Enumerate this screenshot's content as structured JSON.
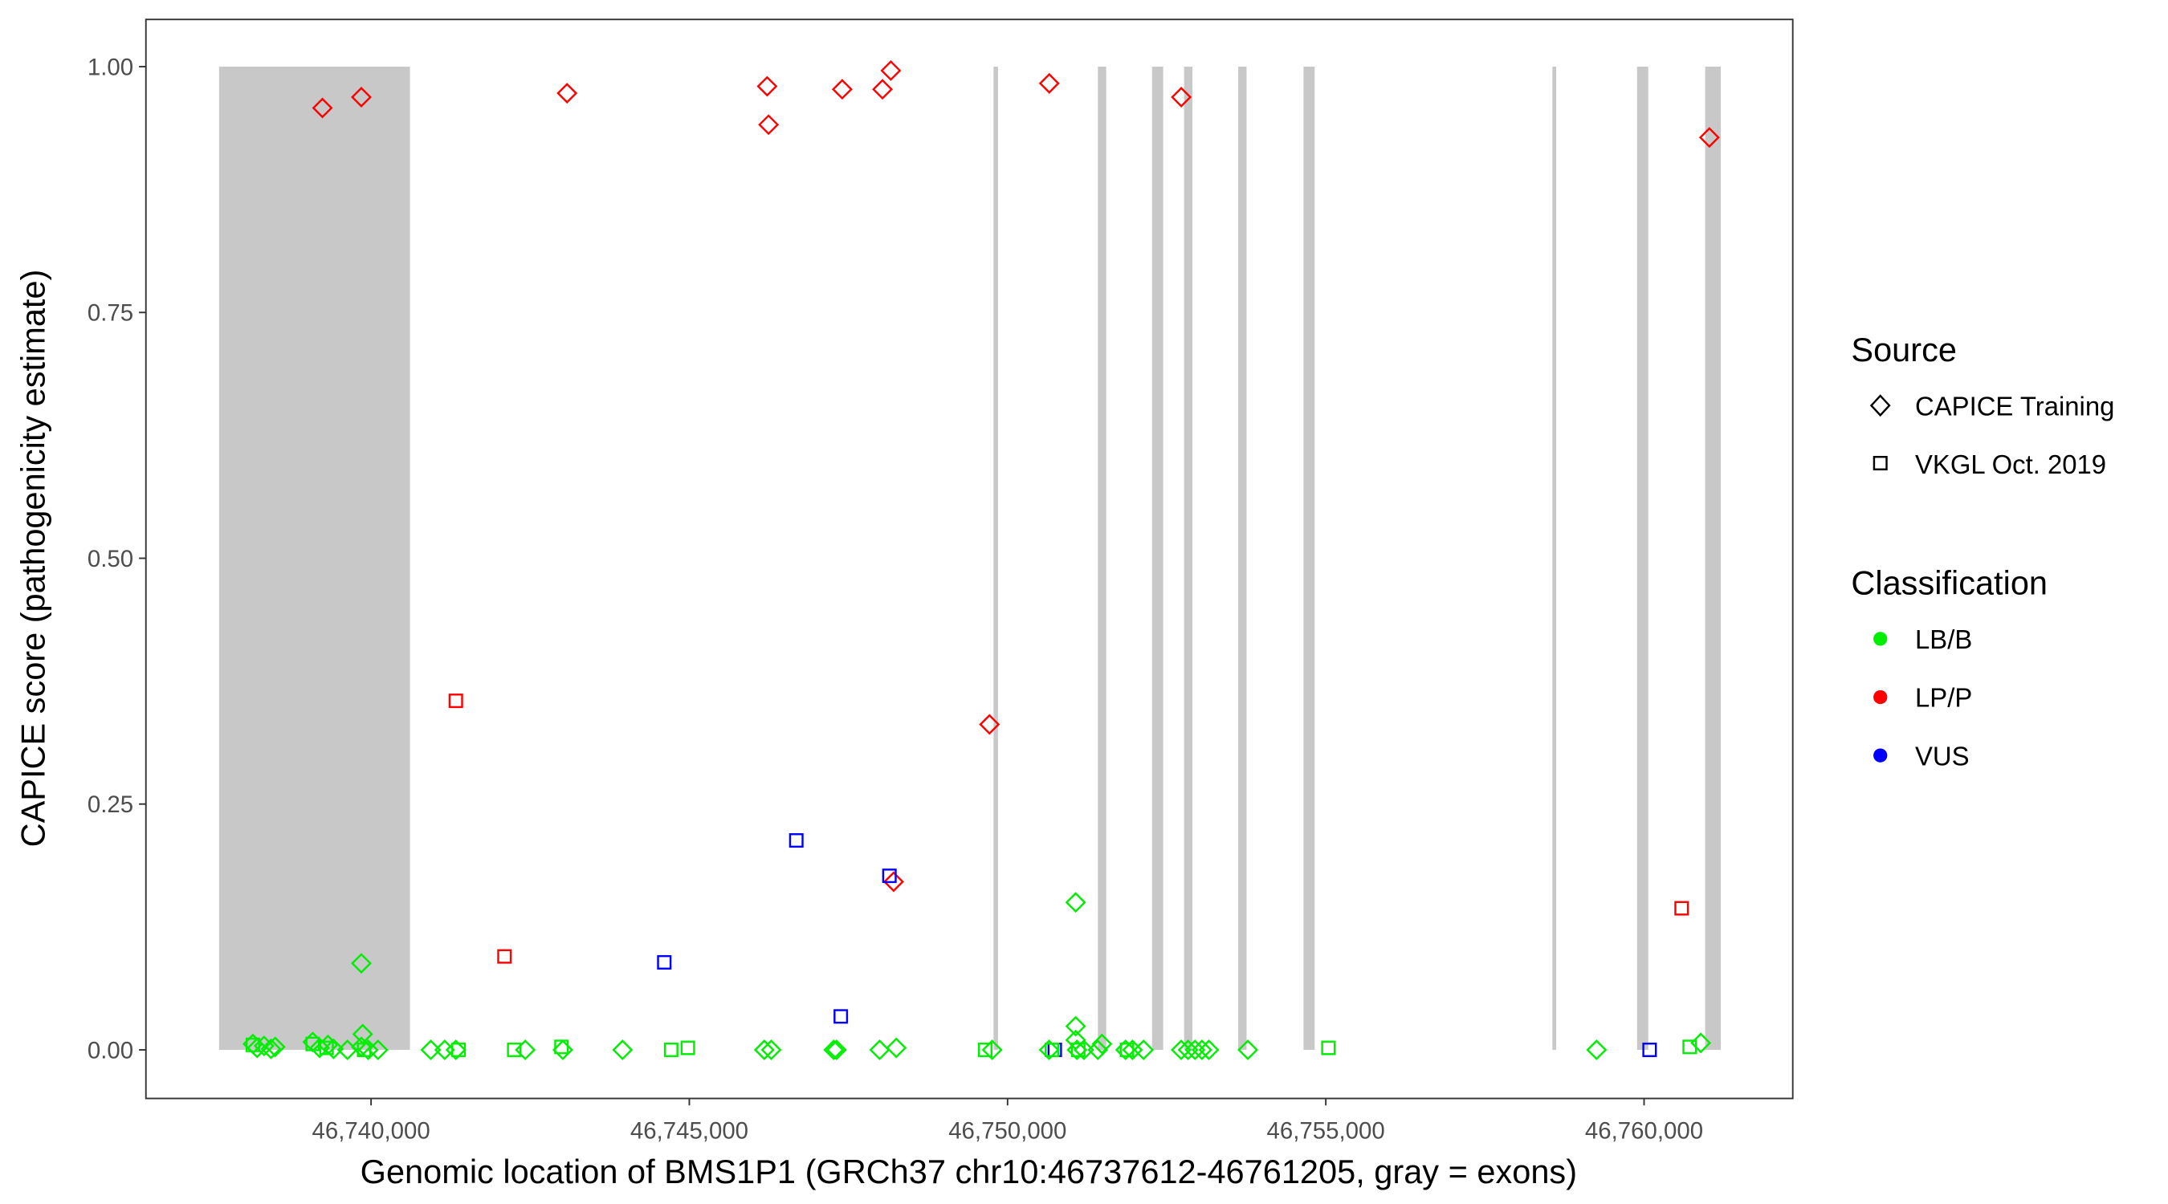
{
  "chart_data": {
    "type": "scatter",
    "xlabel": "Genomic location of BMS1P1 (GRCh37 chr10:46737612-46761205, gray = exons)",
    "ylabel": "CAPICE score (pathogenicity estimate)",
    "xlim": [
      46737100,
      46762950
    ],
    "ylim": [
      -0.047,
      1.048
    ],
    "xticks": [
      46740000,
      46745000,
      46750000,
      46755000,
      46760000
    ],
    "xtick_labels": [
      "46,740,000",
      "46,745,000",
      "46,750,000",
      "46,755,000",
      "46,760,000"
    ],
    "yticks": [
      0,
      0.25,
      0.5,
      0.75,
      1.0
    ],
    "ytick_labels": [
      "0.00",
      "0.25",
      "0.50",
      "0.75",
      "1.00"
    ],
    "grid": false,
    "exon_color": "#c8c8c8",
    "exons": [
      [
        46737612,
        46740611
      ],
      [
        46749780,
        46749850
      ],
      [
        46751419,
        46751550
      ],
      [
        46752270,
        46752445
      ],
      [
        46752773,
        46752904
      ],
      [
        46753624,
        46753755
      ],
      [
        46754650,
        46754825
      ],
      [
        46758560,
        46758620
      ],
      [
        46759890,
        46760066
      ],
      [
        46760960,
        46761205
      ]
    ],
    "legend_position": "right",
    "legend": {
      "source_title": "Source",
      "source_items": [
        {
          "label": "CAPICE Training",
          "shape": "diamond"
        },
        {
          "label": "VKGL Oct. 2019",
          "shape": "square"
        }
      ],
      "class_title": "Classification",
      "class_items": [
        {
          "label": "LB/B",
          "color": "#00ee00"
        },
        {
          "label": "LP/P",
          "color": "#ff0000"
        },
        {
          "label": "VUS",
          "color": "#0000ff"
        }
      ]
    },
    "colors": {
      "LB/B": "#00ee00",
      "LP/P": "#ff0000",
      "VUS": "#0000ff"
    },
    "points": [
      [
        46739236,
        0.958,
        "D",
        "LP/P"
      ],
      [
        46739847,
        0.969,
        "D",
        "LP/P"
      ],
      [
        46743079,
        0.973,
        "D",
        "LP/P"
      ],
      [
        46746223,
        0.98,
        "D",
        "LP/P"
      ],
      [
        46746245,
        0.941,
        "D",
        "LP/P"
      ],
      [
        46747402,
        0.977,
        "D",
        "LP/P"
      ],
      [
        46748035,
        0.977,
        "D",
        "LP/P"
      ],
      [
        46748166,
        0.996,
        "D",
        "LP/P"
      ],
      [
        46750655,
        0.983,
        "D",
        "LP/P"
      ],
      [
        46752729,
        0.969,
        "D",
        "LP/P"
      ],
      [
        46761026,
        0.928,
        "D",
        "LP/P"
      ],
      [
        46749716,
        0.331,
        "D",
        "LP/P"
      ],
      [
        46748210,
        0.171,
        "D",
        "LP/P"
      ],
      [
        46741332,
        0.355,
        "S",
        "LP/P"
      ],
      [
        46742096,
        0.095,
        "S",
        "LP/P"
      ],
      [
        46760590,
        0.144,
        "S",
        "LP/P"
      ],
      [
        46746681,
        0.213,
        "S",
        "VUS"
      ],
      [
        46748144,
        0.177,
        "S",
        "VUS"
      ],
      [
        46744607,
        0.089,
        "S",
        "VUS"
      ],
      [
        46747380,
        0.034,
        "S",
        "VUS"
      ],
      [
        46750742,
        0.0,
        "S",
        "VUS"
      ],
      [
        46760087,
        0.0,
        "S",
        "VUS"
      ],
      [
        46739847,
        0.088,
        "D",
        "LB/B"
      ],
      [
        46751070,
        0.15,
        "D",
        "LB/B"
      ],
      [
        46751070,
        0.024,
        "D",
        "LB/B"
      ],
      [
        46739869,
        0.016,
        "D",
        "LB/B"
      ],
      [
        46751070,
        0.01,
        "D",
        "LB/B"
      ],
      [
        46738144,
        0.006,
        "D",
        "LB/B"
      ],
      [
        46738210,
        0.002,
        "D",
        "LB/B"
      ],
      [
        46738319,
        0.004,
        "D",
        "LB/B"
      ],
      [
        46738428,
        0.001,
        "D",
        "LB/B"
      ],
      [
        46738494,
        0.003,
        "D",
        "LB/B"
      ],
      [
        46739083,
        0.008,
        "D",
        "LB/B"
      ],
      [
        46739192,
        0.002,
        "D",
        "LB/B"
      ],
      [
        46739323,
        0.005,
        "D",
        "LB/B"
      ],
      [
        46739411,
        0.001,
        "D",
        "LB/B"
      ],
      [
        46739629,
        0.0,
        "D",
        "LB/B"
      ],
      [
        46739847,
        0.003,
        "D",
        "LB/B"
      ],
      [
        46739956,
        0.0,
        "D",
        "LB/B"
      ],
      [
        46740109,
        0.0,
        "D",
        "LB/B"
      ],
      [
        46740939,
        0.0,
        "D",
        "LB/B"
      ],
      [
        46741157,
        0.0,
        "D",
        "LB/B"
      ],
      [
        46741332,
        0.0,
        "D",
        "LB/B"
      ],
      [
        46742423,
        0.0,
        "D",
        "LB/B"
      ],
      [
        46743013,
        0.0,
        "D",
        "LB/B"
      ],
      [
        46743951,
        0.0,
        "D",
        "LB/B"
      ],
      [
        46746178,
        0.0,
        "D",
        "LB/B"
      ],
      [
        46746287,
        0.0,
        "D",
        "LB/B"
      ],
      [
        46747269,
        0.0,
        "D",
        "LB/B"
      ],
      [
        46747313,
        0.0,
        "D",
        "LB/B"
      ],
      [
        46747990,
        0.0,
        "D",
        "LB/B"
      ],
      [
        46748252,
        0.002,
        "D",
        "LB/B"
      ],
      [
        46749758,
        0.0,
        "D",
        "LB/B"
      ],
      [
        46750653,
        0.0,
        "D",
        "LB/B"
      ],
      [
        46751090,
        0.0,
        "D",
        "LB/B"
      ],
      [
        46751199,
        0.0,
        "D",
        "LB/B"
      ],
      [
        46751418,
        0.0,
        "D",
        "LB/B"
      ],
      [
        46751483,
        0.006,
        "D",
        "LB/B"
      ],
      [
        46751854,
        0.0,
        "D",
        "LB/B"
      ],
      [
        46751963,
        0.0,
        "D",
        "LB/B"
      ],
      [
        46752137,
        0.0,
        "D",
        "LB/B"
      ],
      [
        46752727,
        0.0,
        "D",
        "LB/B"
      ],
      [
        46752836,
        0.0,
        "D",
        "LB/B"
      ],
      [
        46752945,
        0.0,
        "D",
        "LB/B"
      ],
      [
        46753054,
        0.0,
        "D",
        "LB/B"
      ],
      [
        46753163,
        0.0,
        "D",
        "LB/B"
      ],
      [
        46753775,
        0.0,
        "D",
        "LB/B"
      ],
      [
        46759254,
        0.0,
        "D",
        "LB/B"
      ],
      [
        46760891,
        0.007,
        "D",
        "LB/B"
      ],
      [
        46738144,
        0.005,
        "S",
        "LB/B"
      ],
      [
        46739083,
        0.006,
        "S",
        "LB/B"
      ],
      [
        46739301,
        0.002,
        "S",
        "LB/B"
      ],
      [
        46739891,
        0.0,
        "S",
        "LB/B"
      ],
      [
        46741375,
        0.0,
        "S",
        "LB/B"
      ],
      [
        46742249,
        0.0,
        "S",
        "LB/B"
      ],
      [
        46742991,
        0.003,
        "S",
        "LB/B"
      ],
      [
        46744715,
        0.0,
        "S",
        "LB/B"
      ],
      [
        46744977,
        0.002,
        "S",
        "LB/B"
      ],
      [
        46749649,
        0.0,
        "S",
        "LB/B"
      ],
      [
        46750697,
        0.0,
        "S",
        "LB/B"
      ],
      [
        46751111,
        0.0,
        "S",
        "LB/B"
      ],
      [
        46751876,
        0.0,
        "S",
        "LB/B"
      ],
      [
        46755041,
        0.002,
        "S",
        "LB/B"
      ],
      [
        46760717,
        0.003,
        "S",
        "LB/B"
      ]
    ]
  }
}
